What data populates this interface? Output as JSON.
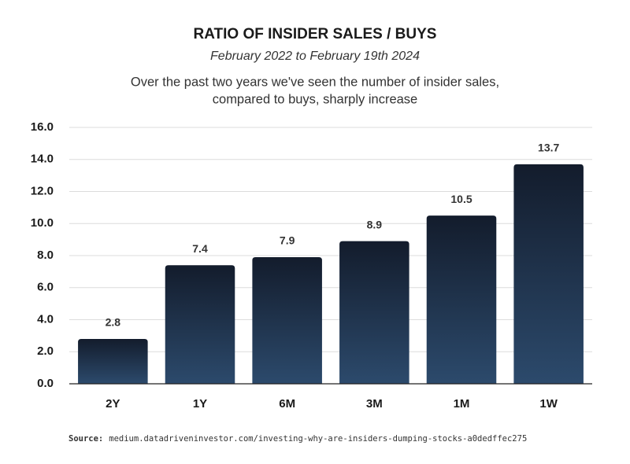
{
  "chart_data": {
    "type": "bar",
    "title": "RATIO OF INSIDER SALES / BUYS",
    "subtitle": "February 2022 to February 19th 2024",
    "description": [
      "Over the past two years we've seen the number of insider sales,",
      "compared to buys, sharply increase"
    ],
    "categories": [
      "2Y",
      "1Y",
      "6M",
      "3M",
      "1M",
      "1W"
    ],
    "values": [
      2.8,
      7.4,
      7.9,
      8.9,
      10.5,
      13.7
    ],
    "gradient": [
      "#131c2c",
      "#2c4a6c"
    ],
    "ylim": [
      0,
      16
    ],
    "yticks": [
      {
        "value": 0,
        "label": "0.0"
      },
      {
        "value": 2,
        "label": "2.0"
      },
      {
        "value": 4,
        "label": "4.0"
      },
      {
        "value": 6,
        "label": "6.0"
      },
      {
        "value": 8,
        "label": "8.0"
      },
      {
        "value": 10,
        "label": "10.0"
      },
      {
        "value": 12,
        "label": "12.0"
      },
      {
        "value": 14,
        "label": "14.0"
      },
      {
        "value": 16,
        "label": "16.0"
      }
    ],
    "grid": true,
    "source_label": "Source:",
    "source": "medium.datadriveninvestor.com/investing-why-are-insiders-dumping-stocks-a0dedffec275"
  }
}
